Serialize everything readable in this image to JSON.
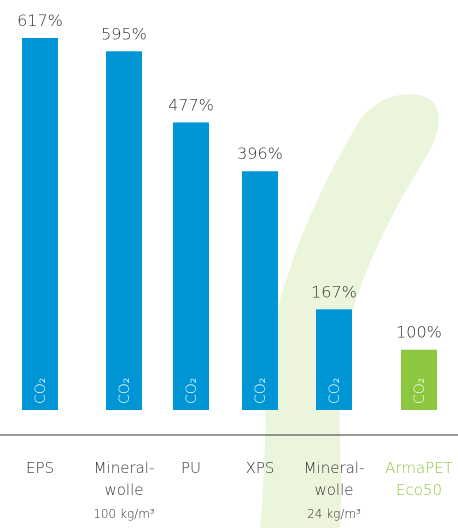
{
  "chart_data": {
    "type": "bar",
    "categories": [
      [
        "EPS"
      ],
      [
        "Mineral-",
        "wolle"
      ],
      [
        "PU"
      ],
      [
        "XPS"
      ],
      [
        "Mineral-",
        "wolle"
      ],
      [
        "ArmaPET",
        "Eco50"
      ]
    ],
    "sublabels": [
      null,
      "100 kg/m³",
      null,
      null,
      "24 kg/m³",
      null
    ],
    "values": [
      617,
      595,
      477,
      396,
      167,
      100
    ],
    "value_labels": [
      "617%",
      "595%",
      "477%",
      "396%",
      "167%",
      "100%"
    ],
    "bar_label": "CO₂",
    "colors": [
      "#0096d6",
      "#0096d6",
      "#0096d6",
      "#0096d6",
      "#0096d6",
      "#8dc63f"
    ]
  }
}
